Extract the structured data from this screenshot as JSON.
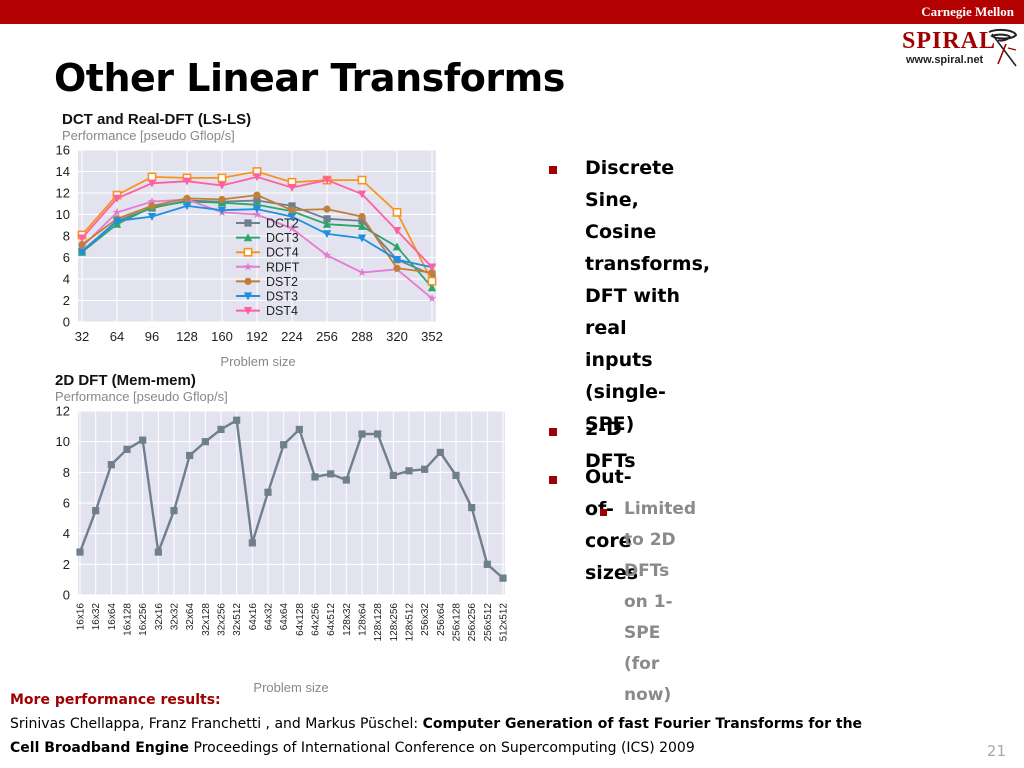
{
  "header": {
    "institution": "Carnegie Mellon",
    "logo_word": "SPIRAL",
    "logo_url": "www.spiral.net"
  },
  "slide": {
    "title": "Other Linear Transforms",
    "number": "21"
  },
  "bullets": [
    {
      "text_lines": [
        "Discrete Sine, Cosine",
        "transforms, DFT with real",
        "inputs (single-SPE)"
      ]
    },
    {
      "text_lines": [
        "2-D DFTs"
      ]
    },
    {
      "text_lines": [
        "Out-of-core sizes"
      ]
    }
  ],
  "sub_bullets": [
    {
      "text_lines": [
        "Limited to 2D DFTs on 1-SPE",
        "(for now)"
      ]
    }
  ],
  "footer": {
    "more_label": "More performance results:",
    "authors": "Srinivas Chellappa, Franz Franchetti , and Markus Püschel: ",
    "paper_title_1": "Computer Generation of fast Fourier Transforms for the",
    "paper_title_2": "Cell Broadband Engine",
    "venue": " Proceedings of International Conference on Supercomputing (ICS) 2009"
  },
  "colors": {
    "topbar": "#b30000",
    "accent": "#a00000",
    "plot_bg": "#e3e3f0"
  },
  "chart_data": [
    {
      "type": "line",
      "title": "DCT and Real-DFT (LS-LS)",
      "subtitle": "Performance [pseudo Gflop/s]",
      "xlabel": "Problem size",
      "ylabel": "",
      "categories": [
        "32",
        "64",
        "96",
        "128",
        "160",
        "192",
        "224",
        "256",
        "288",
        "320",
        "352"
      ],
      "yticks": [
        "0",
        "2",
        "4",
        "6",
        "8",
        "10",
        "12",
        "14",
        "16"
      ],
      "ylim": [
        0,
        16
      ],
      "grid": true,
      "legend_position": "center",
      "series": [
        {
          "name": "DCT2",
          "color": "#6f7f8c",
          "marker": "square",
          "values": [
            6.6,
            9.4,
            10.6,
            11.3,
            11.2,
            11.3,
            10.8,
            9.6,
            9.4,
            5.8,
            4.4
          ]
        },
        {
          "name": "DCT3",
          "color": "#2ca66b",
          "marker": "triangle-up",
          "values": [
            6.5,
            9.1,
            10.7,
            11.2,
            11.1,
            10.9,
            10.3,
            9.1,
            8.9,
            7.0,
            3.2
          ]
        },
        {
          "name": "DCT4",
          "color": "#f79420",
          "marker": "square-open",
          "values": [
            8.1,
            11.8,
            13.5,
            13.4,
            13.4,
            14.0,
            13.0,
            13.2,
            13.2,
            10.2,
            3.8
          ]
        },
        {
          "name": "RDFT",
          "color": "#e57bd0",
          "marker": "star",
          "values": [
            7.0,
            10.2,
            11.2,
            11.4,
            10.2,
            10.0,
            8.7,
            6.2,
            4.6,
            4.9,
            2.2
          ]
        },
        {
          "name": "DST2",
          "color": "#c07f3a",
          "marker": "circle",
          "values": [
            7.2,
            9.6,
            10.8,
            11.5,
            11.4,
            11.8,
            10.4,
            10.5,
            9.8,
            5.0,
            4.6
          ]
        },
        {
          "name": "DST3",
          "color": "#1f8fe0",
          "marker": "triangle-down",
          "values": [
            6.5,
            9.4,
            9.8,
            10.8,
            10.4,
            10.5,
            9.8,
            8.2,
            7.8,
            5.8,
            5.1
          ]
        },
        {
          "name": "DST4",
          "color": "#ff5fa2",
          "marker": "triangle-down",
          "values": [
            7.8,
            11.5,
            12.9,
            13.1,
            12.7,
            13.5,
            12.5,
            13.2,
            11.9,
            8.5,
            5.1
          ]
        }
      ]
    },
    {
      "type": "line",
      "title": "2D DFT (Mem-mem)",
      "subtitle": "Performance [pseudo Gflop/s]",
      "xlabel": "Problem size",
      "ylabel": "",
      "categories": [
        "16x16",
        "16x32",
        "16x64",
        "16x128",
        "16x256",
        "32x16",
        "32x32",
        "32x64",
        "32x128",
        "32x256",
        "32x512",
        "64x16",
        "64x32",
        "64x64",
        "64x128",
        "64x256",
        "64x512",
        "128x32",
        "128x64",
        "128x128",
        "128x256",
        "128x512",
        "256x32",
        "256x64",
        "256x128",
        "256x256",
        "256x512",
        "512x512"
      ],
      "yticks": [
        "0",
        "2",
        "4",
        "6",
        "8",
        "10",
        "12"
      ],
      "ylim": [
        0,
        12
      ],
      "grid": true,
      "series": [
        {
          "name": "",
          "color": "#6f7f8c",
          "marker": "square",
          "values": [
            2.8,
            5.5,
            8.5,
            9.5,
            10.1,
            2.8,
            5.5,
            9.1,
            10.0,
            10.8,
            11.4,
            3.4,
            6.7,
            9.8,
            10.8,
            7.7,
            7.9,
            7.5,
            10.5,
            10.5,
            7.8,
            8.1,
            8.2,
            9.3,
            7.8,
            5.7,
            2.0,
            1.1
          ]
        }
      ]
    }
  ]
}
